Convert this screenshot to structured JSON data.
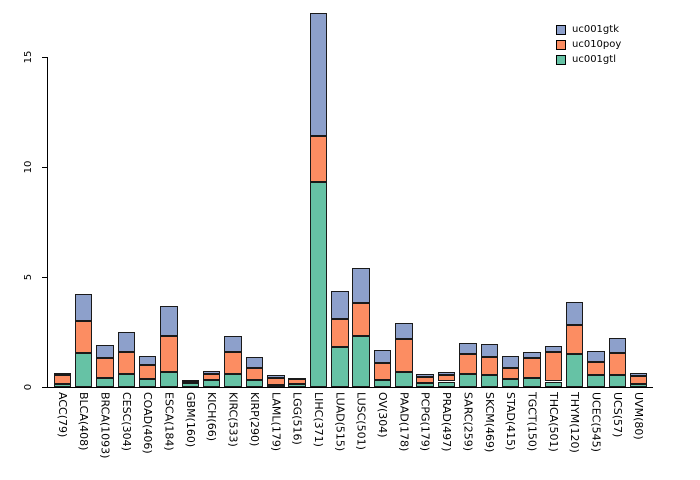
{
  "chart_data": {
    "type": "bar",
    "stacked": true,
    "title": "",
    "xlabel": "",
    "ylabel": "",
    "ylim": [
      0,
      17.5
    ],
    "grid": false,
    "legend_position": "top-right",
    "ytick_labels": [
      "0",
      "5",
      "10",
      "15"
    ],
    "yticks": [
      0,
      5,
      10,
      15
    ],
    "categories": [
      "ACC(79)",
      "BLCA(408)",
      "BRCA(1093)",
      "CESC(304)",
      "COAD(406)",
      "ESCA(184)",
      "GBM(160)",
      "KICH(66)",
      "KIRC(533)",
      "KIRP(290)",
      "LAML(179)",
      "LGG(516)",
      "LIHC(371)",
      "LUAD(515)",
      "LUSC(501)",
      "OV(304)",
      "PAAD(178)",
      "PCPG(179)",
      "PRAD(497)",
      "SARC(259)",
      "SKCM(469)",
      "STAD(415)",
      "TGCT(150)",
      "THCA(501)",
      "THYM(120)",
      "UCEC(545)",
      "UCS(57)",
      "UVM(80)"
    ],
    "series": [
      {
        "name": "uc001gtl",
        "color": "#66C2A5",
        "values": [
          0.15,
          1.55,
          0.4,
          0.6,
          0.35,
          0.7,
          0.2,
          0.3,
          0.6,
          0.3,
          0.1,
          0.15,
          9.3,
          1.8,
          2.3,
          0.3,
          0.7,
          0.2,
          0.25,
          0.6,
          0.55,
          0.35,
          0.4,
          0.25,
          1.5,
          0.55,
          0.55,
          0.15
        ]
      },
      {
        "name": "uc010poy",
        "color": "#FC8D62",
        "values": [
          0.4,
          1.45,
          0.9,
          1.0,
          0.65,
          1.6,
          0.07,
          0.3,
          1.0,
          0.55,
          0.3,
          0.2,
          2.1,
          1.3,
          1.5,
          0.8,
          1.5,
          0.25,
          0.3,
          0.9,
          0.8,
          0.5,
          0.9,
          1.35,
          1.3,
          0.6,
          1.0,
          0.35
        ]
      },
      {
        "name": "uc001gtk",
        "color": "#8DA0CB",
        "values": [
          0.08,
          1.25,
          0.6,
          0.9,
          0.4,
          1.4,
          0.05,
          0.15,
          0.7,
          0.5,
          0.15,
          0.05,
          5.6,
          1.25,
          1.6,
          0.6,
          0.7,
          0.15,
          0.15,
          0.5,
          0.6,
          0.55,
          0.3,
          0.25,
          1.05,
          0.5,
          0.7,
          0.12
        ]
      }
    ]
  },
  "colors": {
    "background": "#FFFFFF",
    "axis": "#000000",
    "bar_border": "#1A1A1A"
  }
}
